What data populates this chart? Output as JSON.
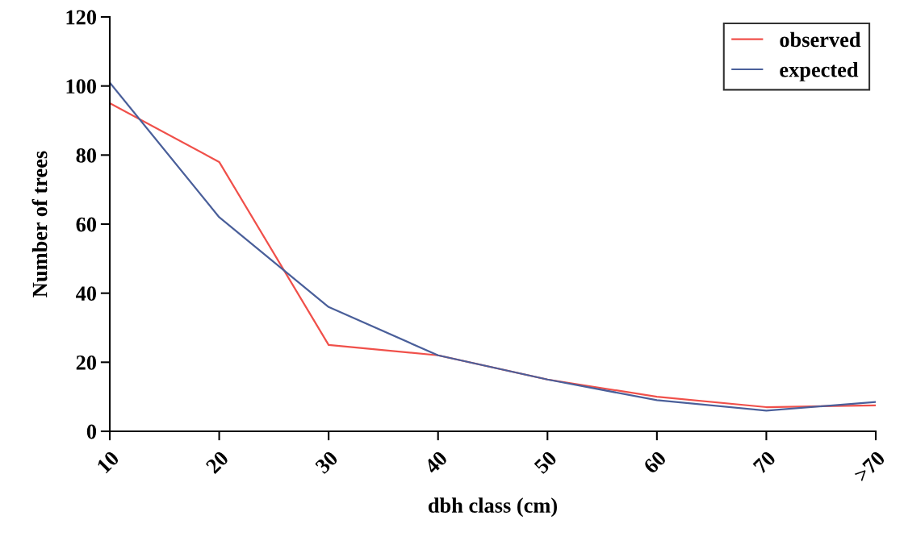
{
  "chart_data": {
    "type": "line",
    "xlabel": "dbh class (cm)",
    "ylabel": "Number of trees",
    "categories": [
      "10",
      "20",
      "30",
      "40",
      "50",
      "60",
      "70",
      ">70"
    ],
    "series": [
      {
        "name": "observed",
        "color": "#f0504a",
        "values": [
          95,
          78,
          25,
          22,
          15,
          10,
          7,
          7.5
        ]
      },
      {
        "name": "expected",
        "color": "#4a5f9a",
        "values": [
          101,
          62,
          36,
          22,
          15,
          9,
          6,
          8.5
        ]
      }
    ],
    "ylim": [
      0,
      120
    ],
    "yticks": [
      0,
      20,
      40,
      60,
      80,
      100,
      120
    ],
    "grid": false,
    "legend": "top right",
    "marker": "none",
    "line_style": "solid"
  }
}
